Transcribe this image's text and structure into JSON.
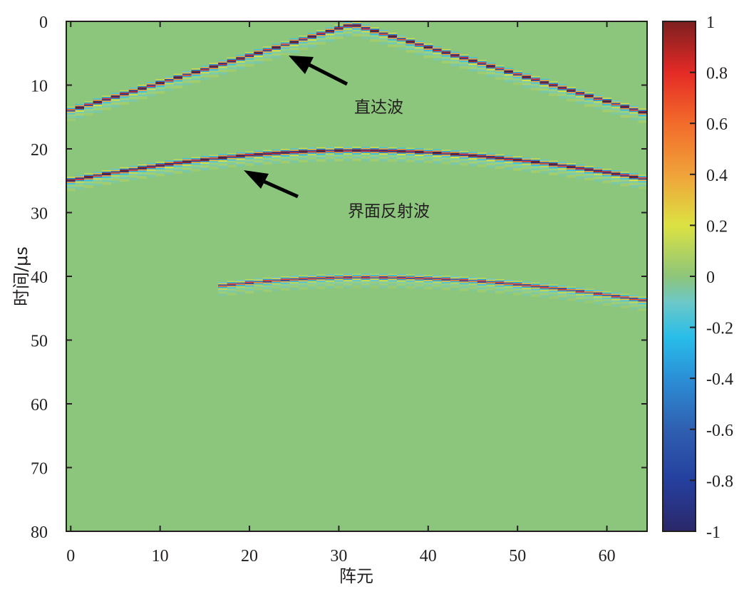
{
  "chart_data": {
    "type": "heatmap",
    "title": "",
    "xlabel": "阵元",
    "ylabel": "时间/μs",
    "xlim": [
      -0.5,
      64.5
    ],
    "ylim": [
      80,
      0
    ],
    "x_ticks": [
      0,
      10,
      20,
      30,
      40,
      50,
      60
    ],
    "y_ticks": [
      0,
      10,
      20,
      30,
      40,
      50,
      60,
      70,
      80
    ],
    "colorbar": {
      "colormap": "jet-like",
      "range": [
        -1,
        1
      ],
      "ticks": [
        1,
        0.8,
        0.6,
        0.4,
        0.2,
        0,
        -0.2,
        -0.4,
        -0.6,
        -0.8,
        -1
      ],
      "tick_labels": [
        "1",
        "0.8",
        "0.6",
        "0.4",
        "0.2",
        "0",
        "-0.2",
        "-0.4",
        "-0.6",
        "-0.8",
        "-1"
      ]
    },
    "background_value": 0,
    "arrivals": [
      {
        "label": "直达波",
        "shape": "V",
        "apex_element": 31.5,
        "apex_time_us": 0.5,
        "edge_elements": [
          0,
          64
        ],
        "edge_times_us": [
          14.0,
          14.3
        ]
      },
      {
        "label": "界面反射波",
        "shape": "hyperbola",
        "apex_element": 32,
        "apex_time_us": 20.3,
        "edge_elements": [
          0,
          64
        ],
        "edge_times_us": [
          25.0,
          24.7
        ]
      },
      {
        "label": "",
        "shape": "hyperbola",
        "apex_element": 33,
        "apex_time_us": 40.2,
        "edge_elements": [
          17,
          64
        ],
        "edge_times_us": [
          41.5,
          43.8
        ]
      }
    ],
    "annotations": [
      {
        "text": "直达波",
        "x": 32,
        "y": 12.8,
        "arrow_to": {
          "x": 25,
          "y": 5.6
        }
      },
      {
        "text": "界面反射波",
        "x": 31,
        "y": 29.3,
        "arrow_to": {
          "x": 19.5,
          "y": 23.3
        }
      }
    ]
  }
}
